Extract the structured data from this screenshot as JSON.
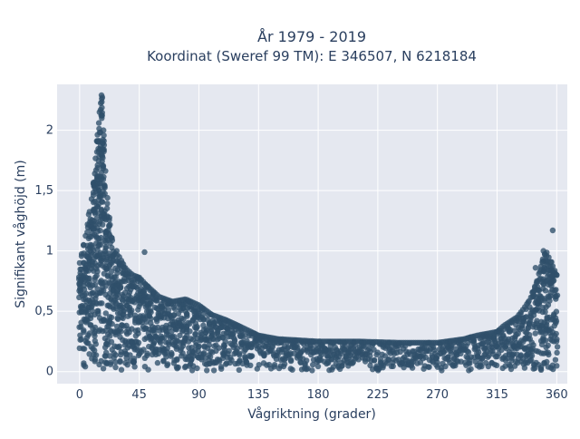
{
  "chart_data": {
    "type": "scatter",
    "title": "År 1979 - 2019",
    "subtitle": "Koordinat (Sweref 99 TM): E 346507, N 6218184",
    "xlabel": "Vågriktning (grader)",
    "ylabel": "Signifikant våghöjd (m)",
    "xlim": [
      -17,
      368
    ],
    "ylim": [
      -0.1,
      2.38
    ],
    "x_ticks": [
      0,
      45,
      90,
      135,
      180,
      225,
      270,
      315,
      360
    ],
    "x_tick_labels": [
      "0",
      "45",
      "90",
      "135",
      "180",
      "225",
      "270",
      "315",
      "360"
    ],
    "y_ticks": [
      0,
      0.5,
      1,
      1.5,
      2
    ],
    "y_tick_labels": [
      "0",
      "0,5",
      "1",
      "1,5",
      "2"
    ],
    "grid": true,
    "legend": "none",
    "marker_color": "#2f4f6a",
    "background_color": "#e5e8f0",
    "series": [
      {
        "envelope": {
          "x": [
            0,
            5,
            10,
            13,
            15,
            16,
            17,
            18,
            20,
            25,
            30,
            35,
            40,
            45,
            50,
            60,
            70,
            80,
            90,
            100,
            110,
            120,
            135,
            150,
            180,
            210,
            240,
            270,
            290,
            300,
            315,
            320,
            330,
            335,
            340,
            345,
            350,
            352,
            355,
            358,
            360
          ],
          "ymax": [
            0.9,
            1.15,
            1.5,
            1.9,
            2.15,
            2.3,
            2.28,
            2.0,
            1.55,
            1.0,
            0.95,
            0.85,
            0.8,
            0.78,
            0.72,
            0.62,
            0.58,
            0.6,
            0.55,
            0.47,
            0.43,
            0.38,
            0.3,
            0.27,
            0.25,
            0.25,
            0.24,
            0.24,
            0.27,
            0.3,
            0.33,
            0.38,
            0.45,
            0.52,
            0.6,
            0.75,
            0.95,
            1.0,
            0.92,
            0.85,
            0.8
          ]
        },
        "outliers": [
          {
            "x": 49,
            "y": 0.99
          },
          {
            "x": 357,
            "y": 1.17
          },
          {
            "x": 344,
            "y": 0.86
          },
          {
            "x": 350,
            "y": 1.0
          },
          {
            "x": 28,
            "y": 1.0
          }
        ]
      }
    ]
  }
}
